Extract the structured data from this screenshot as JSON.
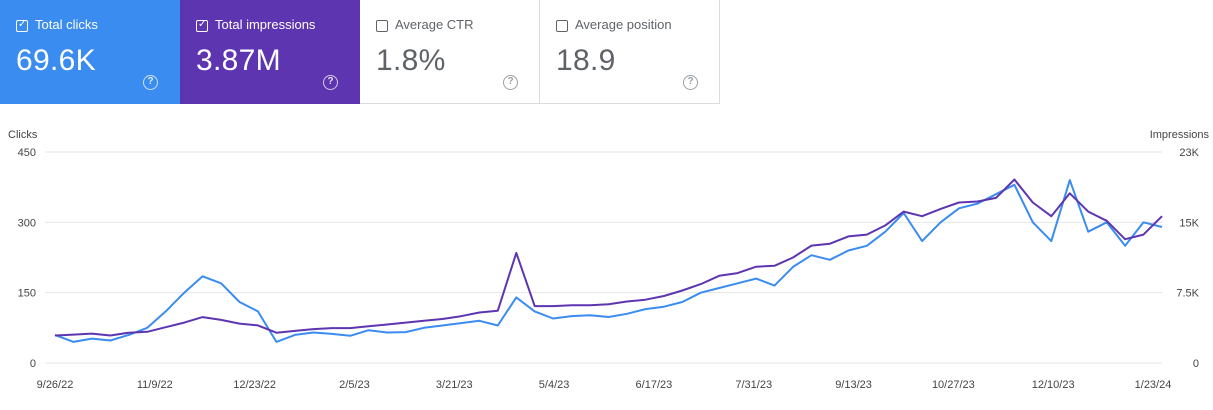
{
  "cards": [
    {
      "label": "Total clicks",
      "value": "69.6K",
      "checked": true,
      "color": "#3b8cf0"
    },
    {
      "label": "Total impressions",
      "value": "3.87M",
      "checked": true,
      "color": "#5e35b1"
    },
    {
      "label": "Average CTR",
      "value": "1.8%",
      "checked": false
    },
    {
      "label": "Average position",
      "value": "18.9",
      "checked": false
    }
  ],
  "chart_data": {
    "type": "line",
    "title": "",
    "left_axis_label": "Clicks",
    "right_axis_label": "Impressions",
    "left_ylim": [
      0,
      450
    ],
    "right_ylim": [
      0,
      23000
    ],
    "left_ticks": [
      "0",
      "150",
      "300",
      "450"
    ],
    "right_ticks": [
      "0",
      "7.5K",
      "15K",
      "23K"
    ],
    "x_ticks": [
      "9/26/22",
      "11/9/22",
      "12/23/22",
      "2/5/23",
      "3/21/23",
      "5/4/23",
      "6/17/23",
      "7/31/23",
      "9/13/23",
      "10/27/23",
      "12/10/23",
      "1/23/24"
    ],
    "series": [
      {
        "name": "Clicks",
        "axis": "left",
        "color": "#3b8cf0",
        "x_index": [
          0,
          2,
          4,
          6,
          8,
          10,
          12,
          14,
          16,
          18,
          20,
          22,
          24,
          26,
          28,
          30,
          32,
          34,
          36,
          38,
          40,
          42,
          44,
          46,
          48,
          50,
          52,
          54,
          56,
          58,
          60,
          62,
          64,
          66,
          68,
          70,
          72,
          74,
          76,
          78,
          80,
          82,
          84,
          86,
          88,
          90,
          92,
          94,
          96,
          98,
          100,
          102,
          104,
          106,
          108,
          110,
          112,
          114,
          116,
          118,
          120
        ],
        "values": [
          60,
          45,
          52,
          48,
          60,
          75,
          110,
          150,
          185,
          170,
          130,
          110,
          45,
          60,
          65,
          62,
          58,
          70,
          65,
          66,
          75,
          80,
          85,
          90,
          80,
          140,
          110,
          95,
          100,
          102,
          98,
          105,
          115,
          120,
          130,
          150,
          160,
          170,
          180,
          165,
          205,
          230,
          220,
          240,
          250,
          280,
          320,
          260,
          300,
          330,
          340,
          360,
          380,
          300,
          260,
          390,
          280,
          300,
          250,
          300,
          290
        ]
      },
      {
        "name": "Impressions",
        "axis": "right",
        "color": "#5e35b1",
        "x_index": [
          0,
          2,
          4,
          6,
          8,
          10,
          12,
          14,
          16,
          18,
          20,
          22,
          24,
          26,
          28,
          30,
          32,
          34,
          36,
          38,
          40,
          42,
          44,
          46,
          48,
          50,
          52,
          54,
          56,
          58,
          60,
          62,
          64,
          66,
          68,
          70,
          72,
          74,
          76,
          78,
          80,
          82,
          84,
          86,
          88,
          90,
          92,
          94,
          96,
          98,
          100,
          102,
          104,
          106,
          108,
          110,
          112,
          114,
          116,
          118,
          120
        ],
        "values": [
          3000,
          3100,
          3200,
          3000,
          3300,
          3400,
          3900,
          4400,
          5000,
          4700,
          4300,
          4100,
          3300,
          3500,
          3700,
          3800,
          3800,
          4000,
          4200,
          4400,
          4600,
          4800,
          5100,
          5500,
          5700,
          12000,
          6200,
          6200,
          6300,
          6300,
          6400,
          6700,
          6900,
          7300,
          7900,
          8600,
          9500,
          9800,
          10500,
          10600,
          11500,
          12800,
          13000,
          13800,
          14000,
          15000,
          16500,
          16000,
          16800,
          17500,
          17600,
          18000,
          20000,
          17500,
          16000,
          18500,
          16500,
          15500,
          13500,
          14000,
          16000
        ]
      }
    ]
  }
}
